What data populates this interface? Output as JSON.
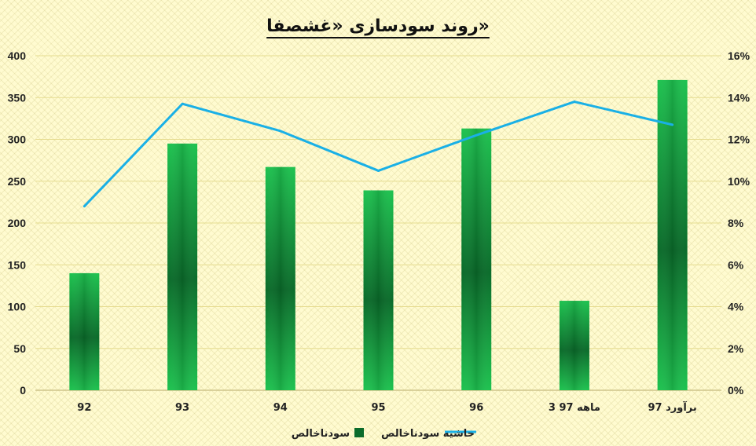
{
  "chart_data": {
    "type": "bar",
    "title": "روند سودسازی «غشصفا»",
    "categories": [
      "92",
      "93",
      "94",
      "95",
      "96",
      "3 ماهه 97",
      "برآورد 97"
    ],
    "series": [
      {
        "name": "سودناخالص",
        "type": "bar",
        "axis": "left",
        "values": [
          140,
          295,
          267,
          239,
          313,
          107,
          371
        ]
      },
      {
        "name": "حاشیه سودناخالص",
        "type": "line",
        "axis": "right",
        "values": [
          8.8,
          13.7,
          12.4,
          10.5,
          12.2,
          13.8,
          12.7
        ]
      }
    ],
    "y_left": {
      "min": 0,
      "max": 400,
      "step": 50,
      "ticks": [
        "0",
        "50",
        "100",
        "150",
        "200",
        "250",
        "300",
        "350",
        "400"
      ]
    },
    "y_right": {
      "min": 0,
      "max": 16,
      "step": 2,
      "ticks": [
        "0%",
        "2%",
        "4%",
        "6%",
        "8%",
        "10%",
        "12%",
        "14%",
        "16%"
      ]
    },
    "grid": true,
    "legend_position": "bottom",
    "colors": {
      "bar_light": "#1dc24f",
      "bar_dark": "#0a6b2a",
      "line": "#1ab0e6",
      "grid": "#e6dc90"
    }
  }
}
